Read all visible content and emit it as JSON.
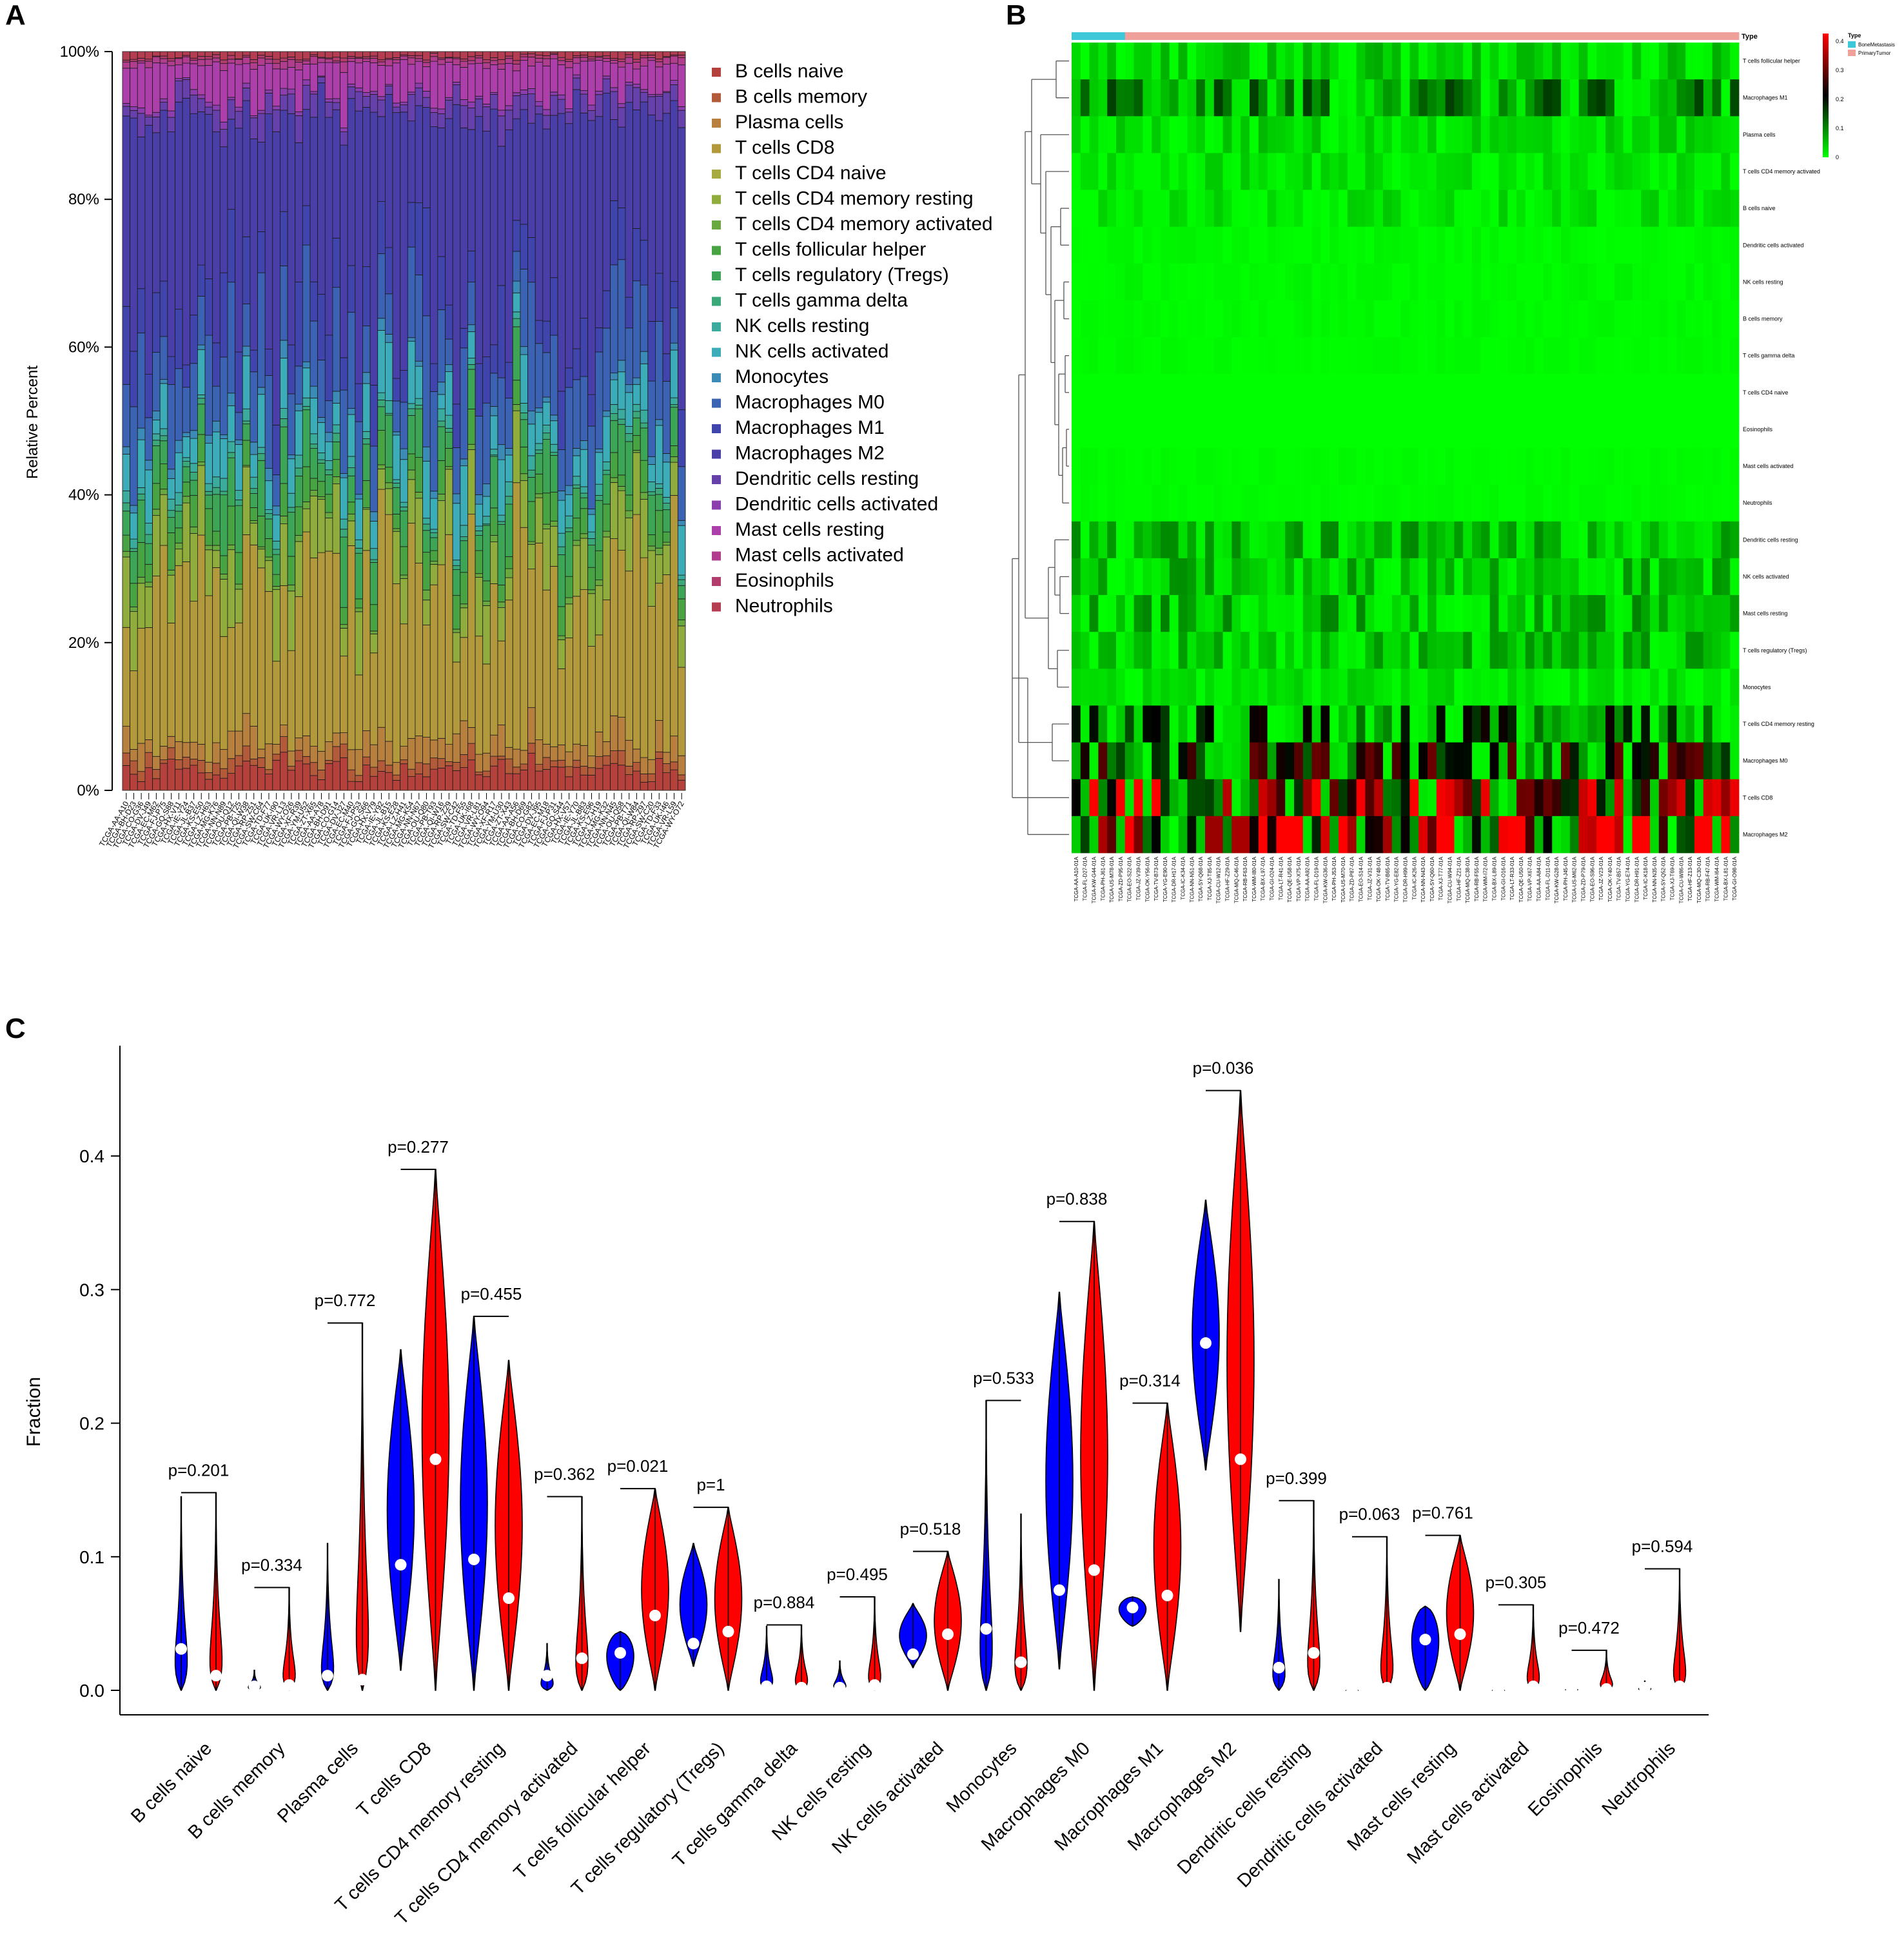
{
  "panel_labels": {
    "a": "A",
    "b": "B",
    "c": "C"
  },
  "chart_data": [
    {
      "panel": "A",
      "type": "bar",
      "stacked": true,
      "ylabel": "Relative Percent",
      "ylim": [
        0,
        100
      ],
      "yticks": [
        "0%",
        "20%",
        "40%",
        "60%",
        "80%",
        "100%"
      ],
      "sample_count": 75,
      "sample_prefix": "TCGA-",
      "sample_label_font": "tiny rotated sample IDs (illegible)",
      "series": [
        {
          "name": "B cells naive",
          "color": "#b5413c"
        },
        {
          "name": "B cells memory",
          "color": "#b35a3b"
        },
        {
          "name": "Plasma cells",
          "color": "#b7803f"
        },
        {
          "name": "T cells CD8",
          "color": "#b29a3c"
        },
        {
          "name": "T cells CD4 naive",
          "color": "#a7aa3f"
        },
        {
          "name": "T cells CD4 memory resting",
          "color": "#8fac3d"
        },
        {
          "name": "T cells CD4 memory activated",
          "color": "#6aa840"
        },
        {
          "name": "T cells follicular helper",
          "color": "#48a343"
        },
        {
          "name": "T cells regulatory (Tregs)",
          "color": "#3da556"
        },
        {
          "name": "T cells gamma delta",
          "color": "#3ba87a"
        },
        {
          "name": "NK cells resting",
          "color": "#3aab9d"
        },
        {
          "name": "NK cells activated",
          "color": "#3cadb8"
        },
        {
          "name": "Monocytes",
          "color": "#3c8bb6"
        },
        {
          "name": "Macrophages M0",
          "color": "#3c62b3"
        },
        {
          "name": "Macrophages M1",
          "color": "#3f45ad"
        },
        {
          "name": "Macrophages M2",
          "color": "#4a3ea9"
        },
        {
          "name": "Dendritic cells resting",
          "color": "#6640ab"
        },
        {
          "name": "Dendritic cells activated",
          "color": "#8b3fae"
        },
        {
          "name": "Mast cells resting",
          "color": "#ad3fab"
        },
        {
          "name": "Mast cells activated",
          "color": "#b03d8d"
        },
        {
          "name": "Eosinophils",
          "color": "#b23d6d"
        },
        {
          "name": "Neutrophils",
          "color": "#b43d52"
        }
      ],
      "mean_fractions": [
        0.025,
        0.01,
        0.025,
        0.21,
        0.0,
        0.06,
        0.005,
        0.03,
        0.045,
        0.005,
        0.01,
        0.045,
        0.01,
        0.09,
        0.065,
        0.26,
        0.02,
        0.003,
        0.04,
        0.005,
        0.001,
        0.005
      ]
    },
    {
      "panel": "B",
      "type": "heatmap",
      "legend_title": "Type",
      "type_legend": [
        {
          "name": "BoneMetastasis",
          "color": "#3ec7d8"
        },
        {
          "name": "PrimaryTumor",
          "color": "#f0a09a"
        }
      ],
      "type_counts": {
        "BoneMetastasis": 6,
        "PrimaryTumor": 69
      },
      "colorscale": {
        "ticks": [
          "0.4",
          "0.3",
          "0.2",
          "0.1",
          "0"
        ],
        "low": "#00ff00",
        "mid": "#000000",
        "high": "#ff0000",
        "range": [
          0,
          0.4
        ]
      },
      "rows": [
        "T cells follicular helper",
        "Macrophages M1",
        "Plasma cells",
        "T cells CD4 memory activated",
        "B cells naive",
        "Dendritic cells activated",
        "NK cells resting",
        "B cells memory",
        "T cells gamma delta",
        "T cells CD4 naive",
        "Eosinophils",
        "Mast cells activated",
        "Neutrophils",
        "Dendritic cells resting",
        "NK cells activated",
        "Mast cells resting",
        "T cells regulatory (Tregs)",
        "Monocytes",
        "T cells CD4 memory resting",
        "Macrophages M0",
        "T cells CD8",
        "Macrophages M2"
      ],
      "row_level": [
        0.03,
        0.07,
        0.025,
        0.02,
        0.02,
        0.005,
        0.005,
        0.004,
        0.003,
        0.0,
        0.0,
        0.003,
        0.003,
        0.045,
        0.04,
        0.045,
        0.04,
        0.02,
        0.1,
        0.13,
        0.2,
        0.27
      ],
      "column_count": 75
    },
    {
      "panel": "C",
      "type": "violin",
      "ylabel": "Fraction",
      "ylim": [
        0,
        0.47
      ],
      "yticks": [
        0.0,
        0.1,
        0.2,
        0.3,
        0.4
      ],
      "ytick_labels": [
        "0.0",
        "0.1",
        "0.2",
        "0.3",
        "0.4"
      ],
      "groups": [
        {
          "name": "BoneMetastasis",
          "color": "#0000ff"
        },
        {
          "name": "PrimaryTumor",
          "color": "#ff0000"
        }
      ],
      "categories": [
        "B cells naive",
        "B cells memory",
        "Plasma cells",
        "T cells CD8",
        "T cells CD4 memory resting",
        "T cells CD4 memory activated",
        "T cells follicular helper",
        "T cells regulatory (Tregs)",
        "T cells gamma delta",
        "NK cells resting",
        "NK cells activated",
        "Monocytes",
        "Macrophages M0",
        "Macrophages M1",
        "Macrophages M2",
        "Dendritic cells resting",
        "Dendritic cells activated",
        "Mast cells resting",
        "Mast cells activated",
        "Eosinophils",
        "Neutrophils"
      ],
      "pvalues": [
        "p=0.201",
        "p=0.334",
        "p=0.772",
        "p=0.277",
        "p=0.455",
        "p=0.362",
        "p=0.021",
        "p=1",
        "p=0.884",
        "p=0.495",
        "p=0.518",
        "p=0.533",
        "p=0.838",
        "p=0.314",
        "p=0.036",
        "p=0.399",
        "p=0.063",
        "p=0.761",
        "p=0.305",
        "p=0.472",
        "p=0.594"
      ],
      "blue": [
        {
          "min": 0.0,
          "max": 0.145,
          "median": 0.031,
          "shape": "bottom"
        },
        {
          "min": 0.0,
          "max": 0.015,
          "median": 0.003,
          "shape": "bottom"
        },
        {
          "min": 0.0,
          "max": 0.11,
          "median": 0.011,
          "shape": "bottom"
        },
        {
          "min": 0.015,
          "max": 0.255,
          "median": 0.094,
          "shape": "center"
        },
        {
          "min": 0.0,
          "max": 0.28,
          "median": 0.098,
          "shape": "center"
        },
        {
          "min": 0.0,
          "max": 0.035,
          "median": 0.011,
          "shape": "bottom"
        },
        {
          "min": 0.0,
          "max": 0.044,
          "median": 0.028,
          "shape": "top"
        },
        {
          "min": 0.018,
          "max": 0.11,
          "median": 0.035,
          "shape": "center"
        },
        {
          "min": 0.0,
          "max": 0.048,
          "median": 0.003,
          "shape": "bottom"
        },
        {
          "min": 0.0,
          "max": 0.022,
          "median": 0.002,
          "shape": "bottom"
        },
        {
          "min": 0.017,
          "max": 0.065,
          "median": 0.027,
          "shape": "center"
        },
        {
          "min": 0.0,
          "max": 0.217,
          "median": 0.046,
          "shape": "bottom"
        },
        {
          "min": 0.016,
          "max": 0.298,
          "median": 0.075,
          "shape": "center"
        },
        {
          "min": 0.048,
          "max": 0.07,
          "median": 0.062,
          "shape": "top"
        },
        {
          "min": 0.165,
          "max": 0.367,
          "median": 0.26,
          "shape": "center"
        },
        {
          "min": 0.0,
          "max": 0.083,
          "median": 0.017,
          "shape": "bottom"
        },
        {
          "min": 0.0,
          "max": 0.0,
          "median": 0.0,
          "shape": "bottom"
        },
        {
          "min": 0.0,
          "max": 0.063,
          "median": 0.038,
          "shape": "top"
        },
        {
          "min": 0.0,
          "max": 0.0,
          "median": 0.0,
          "shape": "bottom"
        },
        {
          "min": 0.0,
          "max": 0.003,
          "median": 0.001,
          "shape": "bottom"
        },
        {
          "min": 0.0,
          "max": 0.007,
          "median": 0.002,
          "shape": "bottom"
        }
      ],
      "red": [
        {
          "min": 0.0,
          "max": 0.148,
          "median": 0.011,
          "shape": "bottom"
        },
        {
          "min": 0.0,
          "max": 0.077,
          "median": 0.004,
          "shape": "bottom"
        },
        {
          "min": 0.0,
          "max": 0.275,
          "median": 0.008,
          "shape": "bottom"
        },
        {
          "min": 0.0,
          "max": 0.39,
          "median": 0.173,
          "shape": "center"
        },
        {
          "min": 0.0,
          "max": 0.247,
          "median": 0.069,
          "shape": "center"
        },
        {
          "min": 0.0,
          "max": 0.145,
          "median": 0.024,
          "shape": "bottom"
        },
        {
          "min": 0.0,
          "max": 0.151,
          "median": 0.056,
          "shape": "center"
        },
        {
          "min": 0.0,
          "max": 0.137,
          "median": 0.044,
          "shape": "center"
        },
        {
          "min": 0.0,
          "max": 0.049,
          "median": 0.002,
          "shape": "bottom"
        },
        {
          "min": 0.0,
          "max": 0.07,
          "median": 0.004,
          "shape": "bottom"
        },
        {
          "min": 0.0,
          "max": 0.104,
          "median": 0.042,
          "shape": "center"
        },
        {
          "min": 0.0,
          "max": 0.132,
          "median": 0.021,
          "shape": "bottom"
        },
        {
          "min": 0.0,
          "max": 0.351,
          "median": 0.09,
          "shape": "center"
        },
        {
          "min": 0.0,
          "max": 0.215,
          "median": 0.071,
          "shape": "center"
        },
        {
          "min": 0.044,
          "max": 0.449,
          "median": 0.173,
          "shape": "center"
        },
        {
          "min": 0.0,
          "max": 0.142,
          "median": 0.028,
          "shape": "bottom"
        },
        {
          "min": 0.0,
          "max": 0.115,
          "median": 0.002,
          "shape": "bottom"
        },
        {
          "min": 0.0,
          "max": 0.116,
          "median": 0.042,
          "shape": "center"
        },
        {
          "min": 0.0,
          "max": 0.064,
          "median": 0.003,
          "shape": "bottom"
        },
        {
          "min": 0.0,
          "max": 0.03,
          "median": 0.001,
          "shape": "bottom"
        },
        {
          "min": 0.0,
          "max": 0.091,
          "median": 0.003,
          "shape": "bottom"
        }
      ]
    }
  ]
}
